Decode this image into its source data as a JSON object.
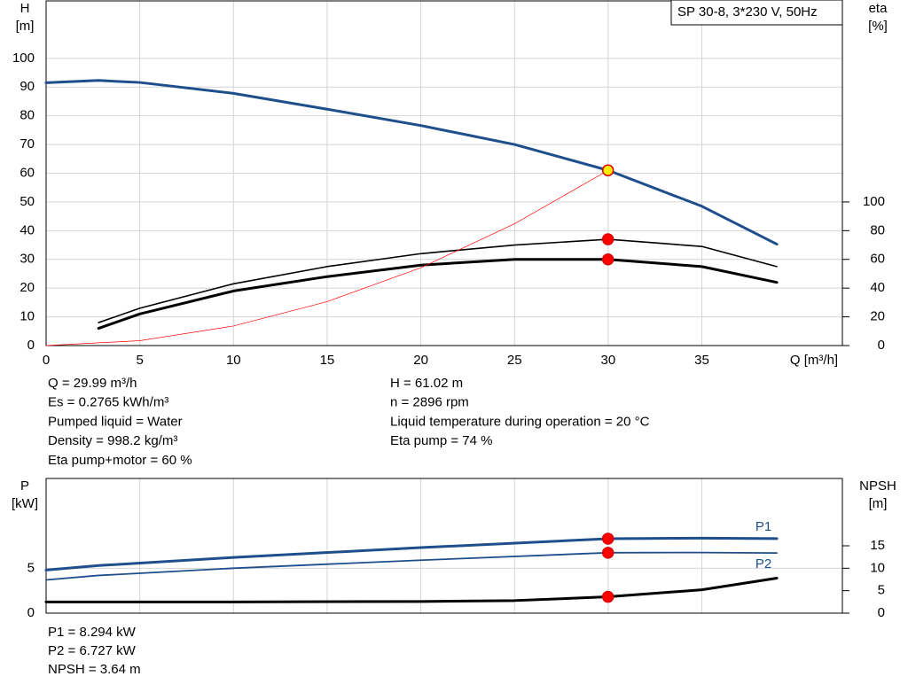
{
  "chart_data": [
    {
      "type": "line",
      "legend_text": "SP 30-8, 3*230 V, 50Hz",
      "xlabel": "Q [m³/h]",
      "ylabel": "H",
      "yunit": "[m]",
      "y2label": "eta",
      "y2unit": "[%]",
      "xlim": [
        0,
        42.5
      ],
      "xticks": [
        0,
        5,
        10,
        15,
        20,
        25,
        30,
        35
      ],
      "ylim": [
        0,
        120
      ],
      "yticks": [
        0,
        10,
        20,
        30,
        40,
        50,
        60,
        70,
        80,
        90,
        100
      ],
      "y2lim": [
        0,
        240
      ],
      "y2ticks": [
        0,
        20,
        40,
        60,
        80,
        100
      ],
      "grid": true,
      "series": [
        {
          "color": "#1f4e8c",
          "linewidth": 3,
          "x": [
            0,
            2.8,
            5,
            10,
            15,
            20,
            25,
            30,
            35,
            39
          ],
          "values": [
            91.5,
            92.3,
            91.6,
            87.8,
            82.3,
            76.6,
            70,
            61,
            48.5,
            35.3
          ]
        },
        {
          "color": "#000000",
          "linewidth": 1.6,
          "axis": "y2",
          "x": [
            2.8,
            5,
            10,
            15,
            20,
            25,
            30,
            35,
            39
          ],
          "values": [
            16,
            26,
            43,
            55,
            64,
            70,
            74,
            69,
            55
          ]
        },
        {
          "color": "#000000",
          "linewidth": 3,
          "axis": "y2",
          "x": [
            2.8,
            5,
            10,
            15,
            20,
            25,
            30,
            35,
            39
          ],
          "values": [
            12,
            22,
            38,
            48,
            56,
            60,
            60,
            55,
            44
          ]
        },
        {
          "color": "#ff0000",
          "linewidth": 0.7,
          "x": [
            0,
            5,
            10,
            15,
            20,
            25,
            30
          ],
          "values": [
            0,
            1.7,
            6.8,
            15.3,
            27.1,
            42.4,
            61
          ]
        },
        {
          "color": "#ffee00",
          "marker": true,
          "x": [
            29.99
          ],
          "values": [
            61.02
          ]
        },
        {
          "color": "#ff0000",
          "marker": true,
          "axis": "y2",
          "x": [
            29.99
          ],
          "values": [
            74
          ]
        },
        {
          "color": "#ff0000",
          "marker": true,
          "axis": "y2",
          "x": [
            29.99
          ],
          "values": [
            60
          ]
        }
      ]
    },
    {
      "type": "line",
      "ylabel": "P",
      "yunit": "[kW]",
      "y2label": "NPSH",
      "y2unit": "[m]",
      "xlim": [
        0,
        42.5
      ],
      "xticks": [
        0,
        5,
        10,
        15,
        20,
        25,
        30,
        35
      ],
      "ylim": [
        0,
        15
      ],
      "yticks": [
        0,
        5
      ],
      "y2lim": [
        0,
        30
      ],
      "y2ticks": [
        0,
        5,
        10,
        15
      ],
      "grid": true,
      "series": [
        {
          "name": "P1",
          "color": "#1f4e8c",
          "linewidth": 3,
          "x": [
            0,
            2.8,
            10,
            20,
            30,
            35,
            39
          ],
          "values": [
            4.8,
            5.3,
            6.2,
            7.3,
            8.29,
            8.35,
            8.3
          ]
        },
        {
          "name": "P2",
          "color": "#1f4e8c",
          "linewidth": 1.8,
          "x": [
            0,
            2.8,
            10,
            20,
            30,
            35,
            39
          ],
          "values": [
            3.7,
            4.2,
            5.0,
            5.9,
            6.73,
            6.75,
            6.7
          ]
        },
        {
          "color": "#000000",
          "linewidth": 3,
          "axis": "y2",
          "x": [
            0,
            2.8,
            10,
            20,
            25,
            30,
            35,
            39
          ],
          "values": [
            2.5,
            2.5,
            2.5,
            2.6,
            2.8,
            3.64,
            5.2,
            7.8
          ]
        },
        {
          "color": "#ff0000",
          "marker": true,
          "x": [
            29.99
          ],
          "values": [
            8.294
          ]
        },
        {
          "color": "#ff0000",
          "marker": true,
          "x": [
            29.99
          ],
          "values": [
            6.727
          ]
        },
        {
          "color": "#ff0000",
          "marker": true,
          "axis": "y2",
          "x": [
            29.99
          ],
          "values": [
            3.64
          ]
        }
      ]
    }
  ],
  "info": {
    "left": [
      "Q = 29.99 m³/h",
      "Es = 0.2765 kWh/m³",
      "Pumped liquid = Water",
      "Density = 998.2 kg/m³",
      "Eta pump+motor = 60 %"
    ],
    "right": [
      "H = 61.02 m",
      "n = 2896 rpm",
      "Liquid temperature during operation = 20 °C",
      "Eta pump = 74 %"
    ],
    "bottom": [
      "P1 = 8.294 kW",
      "P2 = 6.727 kW",
      "NPSH = 3.64 m"
    ]
  }
}
